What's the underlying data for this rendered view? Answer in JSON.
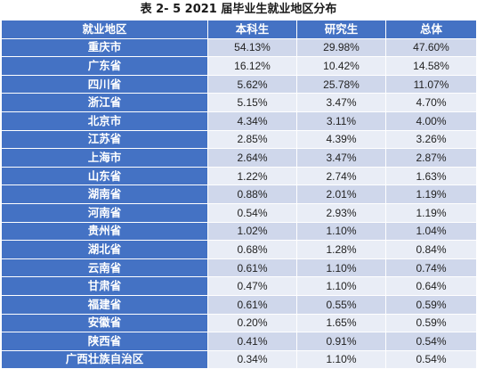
{
  "caption": "表 2- 5 2021 届毕业生就业地区分布",
  "headers": [
    "就业地区",
    "本科生",
    "研究生",
    "总体"
  ],
  "rows": [
    {
      "region": "重庆市",
      "undergrad": "54.13%",
      "grad": "29.98%",
      "total": "47.60%"
    },
    {
      "region": "广东省",
      "undergrad": "16.12%",
      "grad": "10.42%",
      "total": "14.58%"
    },
    {
      "region": "四川省",
      "undergrad": "5.62%",
      "grad": "25.78%",
      "total": "11.07%"
    },
    {
      "region": "浙江省",
      "undergrad": "5.15%",
      "grad": "3.47%",
      "total": "4.70%"
    },
    {
      "region": "北京市",
      "undergrad": "4.34%",
      "grad": "3.11%",
      "total": "4.00%"
    },
    {
      "region": "江苏省",
      "undergrad": "2.85%",
      "grad": "4.39%",
      "total": "3.26%"
    },
    {
      "region": "上海市",
      "undergrad": "2.64%",
      "grad": "3.47%",
      "total": "2.87%"
    },
    {
      "region": "山东省",
      "undergrad": "1.22%",
      "grad": "2.74%",
      "total": "1.63%"
    },
    {
      "region": "湖南省",
      "undergrad": "0.88%",
      "grad": "2.01%",
      "total": "1.19%"
    },
    {
      "region": "河南省",
      "undergrad": "0.54%",
      "grad": "2.93%",
      "total": "1.19%"
    },
    {
      "region": "贵州省",
      "undergrad": "1.02%",
      "grad": "1.10%",
      "total": "1.04%"
    },
    {
      "region": "湖北省",
      "undergrad": "0.68%",
      "grad": "1.28%",
      "total": "0.84%"
    },
    {
      "region": "云南省",
      "undergrad": "0.61%",
      "grad": "1.10%",
      "total": "0.74%"
    },
    {
      "region": "甘肃省",
      "undergrad": "0.47%",
      "grad": "1.10%",
      "total": "0.64%"
    },
    {
      "region": "福建省",
      "undergrad": "0.61%",
      "grad": "0.55%",
      "total": "0.59%"
    },
    {
      "region": "安徽省",
      "undergrad": "0.20%",
      "grad": "1.65%",
      "total": "0.59%"
    },
    {
      "region": "陕西省",
      "undergrad": "0.41%",
      "grad": "0.91%",
      "total": "0.54%"
    },
    {
      "region": "广西壮族自治区",
      "undergrad": "0.34%",
      "grad": "1.10%",
      "total": "0.54%"
    }
  ],
  "colors": {
    "header_bg": "#4472c4",
    "row_dark": "#cfd7eb",
    "row_light": "#e9edf6"
  }
}
